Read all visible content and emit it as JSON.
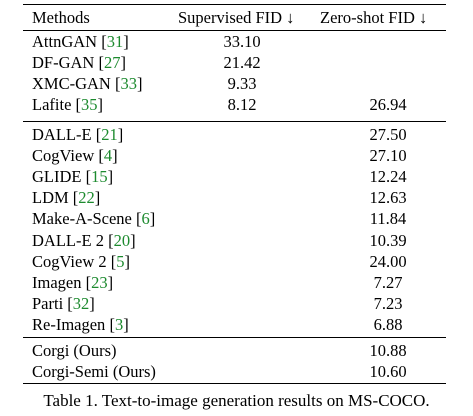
{
  "table": {
    "header": {
      "methods": "Methods",
      "supervised": "Supervised FID ↓",
      "zeroshot": "Zero-shot FID ↓"
    },
    "groups": [
      {
        "rows": [
          {
            "name": "AttnGAN",
            "cite": "31",
            "supervised": "33.10",
            "zeroshot": ""
          },
          {
            "name": "DF-GAN",
            "cite": "27",
            "supervised": "21.42",
            "zeroshot": ""
          },
          {
            "name": "XMC-GAN",
            "cite": "33",
            "supervised": "9.33",
            "zeroshot": ""
          },
          {
            "name": "Lafite",
            "cite": "35",
            "supervised": "8.12",
            "zeroshot": "26.94"
          }
        ]
      },
      {
        "rows": [
          {
            "name": "DALL-E",
            "cite": "21",
            "supervised": "",
            "zeroshot": "27.50"
          },
          {
            "name": "CogView",
            "cite": "4",
            "supervised": "",
            "zeroshot": "27.10"
          },
          {
            "name": "GLIDE",
            "cite": "15",
            "supervised": "",
            "zeroshot": "12.24"
          },
          {
            "name": "LDM",
            "cite": "22",
            "supervised": "",
            "zeroshot": "12.63"
          },
          {
            "name": "Make-A-Scene",
            "cite": "6",
            "supervised": "",
            "zeroshot": "11.84"
          },
          {
            "name": "DALL-E 2",
            "cite": "20",
            "supervised": "",
            "zeroshot": "10.39"
          },
          {
            "name": "CogView 2",
            "cite": "5",
            "supervised": "",
            "zeroshot": "24.00"
          },
          {
            "name": "Imagen",
            "cite": "23",
            "supervised": "",
            "zeroshot": "7.27"
          },
          {
            "name": "Parti",
            "cite": "32",
            "supervised": "",
            "zeroshot": "7.23"
          },
          {
            "name": "Re-Imagen",
            "cite": "3",
            "supervised": "",
            "zeroshot": "6.88"
          }
        ]
      },
      {
        "rows": [
          {
            "name": "Corgi (Ours)",
            "cite": "",
            "supervised": "",
            "zeroshot": "10.88"
          },
          {
            "name": "Corgi-Semi (Ours)",
            "cite": "",
            "supervised": "",
            "zeroshot": "10.60"
          }
        ]
      }
    ]
  },
  "caption": "Table 1. Text-to-image generation results on MS-COCO.",
  "colors": {
    "citation": "#1c8a2e",
    "text": "#000000"
  }
}
